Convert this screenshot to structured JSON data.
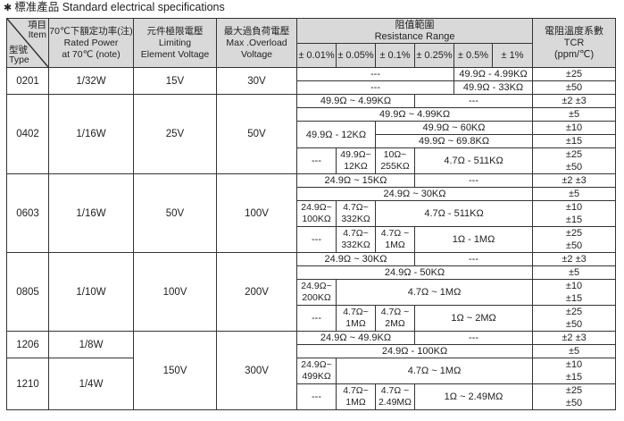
{
  "title": {
    "marker": "✱",
    "zh": "標准產品",
    "en": "Standard electrical specifications"
  },
  "header": {
    "item_zh": "項目",
    "item_en": "Item",
    "type_zh": "型號",
    "type_en": "Type",
    "power": "70℃下額定功率(注)\nRated Power\nat 70℃ (note)",
    "limiting": "元件極限電壓\nLimiting\nElement Voltage",
    "overload": "最大過負荷電壓\nMax .Overload\nVoltage",
    "range": "阻值範圍\nResistance Range",
    "tolerances": [
      "± 0.01%",
      "± 0.05%",
      "± 0.1%",
      "± 0.25%",
      "± 0.5%",
      "± 1%"
    ],
    "tcr": "電阻溫度系數\nTCR\n(ppm/℃)"
  },
  "rows": [
    [
      {
        "t": "0201",
        "rs": 2,
        "k": "type"
      },
      {
        "t": "1/32W",
        "rs": 2,
        "k": "power"
      },
      {
        "t": "15V",
        "rs": 2,
        "k": "limit"
      },
      {
        "t": "30V",
        "rs": 2,
        "k": "overload"
      },
      {
        "t": "---",
        "cs": 4
      },
      {
        "t": "49.9Ω - 4.99KΩ",
        "cs": 2
      },
      {
        "t": "±25",
        "k": "tcr"
      }
    ],
    [
      {
        "t": "---",
        "cs": 4
      },
      {
        "t": "49.9Ω - 33KΩ",
        "cs": 2
      },
      {
        "t": "±50",
        "k": "tcr"
      }
    ],
    [
      {
        "t": "0402",
        "rs": 5,
        "k": "type"
      },
      {
        "t": "1/16W",
        "rs": 5,
        "k": "power"
      },
      {
        "t": "25V",
        "rs": 5,
        "k": "limit"
      },
      {
        "t": "50V",
        "rs": 5,
        "k": "overload"
      },
      {
        "t": "49.9Ω ~ 4.99KΩ",
        "cs": 3
      },
      {
        "t": "---",
        "cs": 3
      },
      {
        "t": "±2  ±3",
        "k": "tcr"
      }
    ],
    [
      {
        "t": "49.9Ω ~ 4.99KΩ",
        "cs": 6
      },
      {
        "t": "±5",
        "k": "tcr"
      }
    ],
    [
      {
        "t": "49.9Ω - 12KΩ",
        "cs": 2,
        "rs": 2
      },
      {
        "t": "49.9Ω ~ 60KΩ",
        "cs": 4
      },
      {
        "t": "±10",
        "k": "tcr"
      }
    ],
    [
      {
        "t": "49.9Ω ~ 69.8KΩ",
        "cs": 4
      },
      {
        "t": "±15",
        "k": "tcr"
      }
    ],
    [
      {
        "t": "---"
      },
      {
        "t": "49.9Ω~\n12KΩ"
      },
      {
        "t": "10Ω~\n255KΩ"
      },
      {
        "t": "4.7Ω - 511KΩ",
        "cs": 3
      },
      {
        "t": "±25\n±50",
        "k": "tcr"
      }
    ],
    [
      {
        "t": "0603",
        "rs": 4,
        "k": "type"
      },
      {
        "t": "1/16W",
        "rs": 4,
        "k": "power"
      },
      {
        "t": "50V",
        "rs": 4,
        "k": "limit"
      },
      {
        "t": "100V",
        "rs": 4,
        "k": "overload"
      },
      {
        "t": "24.9Ω ~ 15KΩ",
        "cs": 3
      },
      {
        "t": "---",
        "cs": 3
      },
      {
        "t": "±2  ±3",
        "k": "tcr"
      }
    ],
    [
      {
        "t": "24.9Ω ~ 30KΩ",
        "cs": 6
      },
      {
        "t": "±5",
        "k": "tcr"
      }
    ],
    [
      {
        "t": "24.9Ω~\n100KΩ"
      },
      {
        "t": "4.7Ω~\n332KΩ"
      },
      {
        "t": "4.7Ω - 511KΩ",
        "cs": 4
      },
      {
        "t": "±10\n±15",
        "k": "tcr"
      }
    ],
    [
      {
        "t": "---"
      },
      {
        "t": "4.7Ω~\n332KΩ"
      },
      {
        "t": "4.7Ω ~\n1MΩ"
      },
      {
        "t": "1Ω - 1MΩ",
        "cs": 3
      },
      {
        "t": "±25\n±50",
        "k": "tcr"
      }
    ],
    [
      {
        "t": "0805",
        "rs": 4,
        "k": "type"
      },
      {
        "t": "1/10W",
        "rs": 4,
        "k": "power"
      },
      {
        "t": "100V",
        "rs": 4,
        "k": "limit"
      },
      {
        "t": "200V",
        "rs": 4,
        "k": "overload"
      },
      {
        "t": "24.9Ω ~ 30KΩ",
        "cs": 3
      },
      {
        "t": "---",
        "cs": 3
      },
      {
        "t": "±2  ±3",
        "k": "tcr"
      }
    ],
    [
      {
        "t": "24.9Ω - 50KΩ",
        "cs": 6
      },
      {
        "t": "±5",
        "k": "tcr"
      }
    ],
    [
      {
        "t": "24.9Ω~\n200KΩ"
      },
      {
        "t": "4.7Ω ~ 1MΩ",
        "cs": 5
      },
      {
        "t": "±10\n±15",
        "k": "tcr"
      }
    ],
    [
      {
        "t": "---"
      },
      {
        "t": "4.7Ω~\n1MΩ"
      },
      {
        "t": "4.7Ω ~\n2MΩ"
      },
      {
        "t": "1Ω ~ 2MΩ",
        "cs": 3
      },
      {
        "t": "±25\n±50",
        "k": "tcr"
      }
    ],
    [
      {
        "t": "1206",
        "rs": 3,
        "k": "type"
      },
      {
        "t": "1/8W",
        "rs": 3,
        "k": "power"
      },
      {
        "t": "150V",
        "rs": 5,
        "k": "limit"
      },
      {
        "t": "300V",
        "rs": 5,
        "k": "overload"
      },
      {
        "t": "24.9Ω ~ 49.9KΩ",
        "cs": 3
      },
      {
        "t": "---",
        "cs": 3
      },
      {
        "t": "±2  ±3",
        "k": "tcr"
      }
    ],
    [
      {
        "t": "24.9Ω - 100KΩ",
        "cs": 6
      },
      {
        "t": "±5",
        "k": "tcr"
      }
    ],
    [
      {
        "t": "24.9Ω~\n499KΩ",
        "rs": 2
      },
      {
        "t": "4.7Ω ~ 1MΩ",
        "cs": 5,
        "rs": 2
      },
      {
        "t": "±10\n±15",
        "rs": 2,
        "k": "tcr"
      }
    ],
    [
      {
        "t": "1210",
        "rs": 2,
        "k": "type"
      },
      {
        "t": "1/4W",
        "rs": 2,
        "k": "power"
      }
    ],
    [
      {
        "t": "---"
      },
      {
        "t": "4.7Ω~\n1MΩ"
      },
      {
        "t": "4.7Ω ~\n2.49MΩ"
      },
      {
        "t": "1Ω ~ 2.49MΩ",
        "cs": 3
      },
      {
        "t": "±25\n±50",
        "k": "tcr"
      }
    ]
  ]
}
